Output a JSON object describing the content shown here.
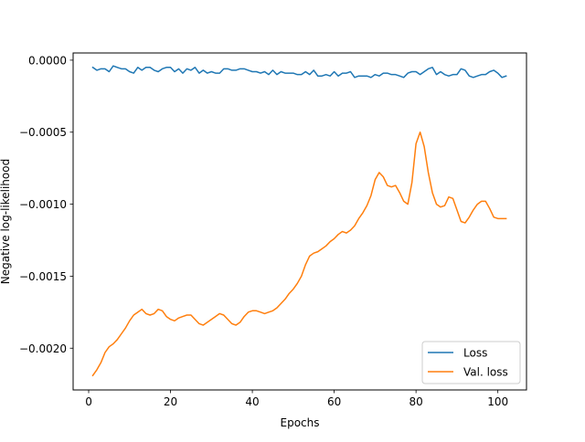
{
  "chart_data": {
    "type": "line",
    "title": "",
    "xlabel": "Epochs",
    "ylabel": "Negative log-likelihood",
    "xlim": [
      -3.8,
      107.0
    ],
    "ylim": [
      -0.00229,
      5e-05
    ],
    "xticks": [
      0,
      20,
      40,
      60,
      80,
      100
    ],
    "yticks": [
      0.0,
      -0.0005,
      -0.001,
      -0.0015,
      -0.002
    ],
    "ytick_labels": [
      "0.0000",
      "−0.0005",
      "−0.0010",
      "−0.0015",
      "−0.0020"
    ],
    "grid": false,
    "legend_position": "lower-right",
    "series": [
      {
        "name": "Loss",
        "color": "#1f77b4",
        "x": [
          1,
          2,
          3,
          4,
          5,
          6,
          7,
          8,
          9,
          10,
          11,
          12,
          13,
          14,
          15,
          16,
          17,
          18,
          19,
          20,
          21,
          22,
          23,
          24,
          25,
          26,
          27,
          28,
          29,
          30,
          31,
          32,
          33,
          34,
          35,
          36,
          37,
          38,
          39,
          40,
          41,
          42,
          43,
          44,
          45,
          46,
          47,
          48,
          49,
          50,
          51,
          52,
          53,
          54,
          55,
          56,
          57,
          58,
          59,
          60,
          61,
          62,
          63,
          64,
          65,
          66,
          67,
          68,
          69,
          70,
          71,
          72,
          73,
          74,
          75,
          76,
          77,
          78,
          79,
          80,
          81,
          82,
          83,
          84,
          85,
          86,
          87,
          88,
          89,
          90,
          91,
          92,
          93,
          94,
          95,
          96,
          97,
          98,
          99,
          100,
          101,
          102
        ],
        "y": [
          -5e-05,
          -7e-05,
          -6e-05,
          -6e-05,
          -8e-05,
          -4e-05,
          -5e-05,
          -6e-05,
          -6e-05,
          -8e-05,
          -9e-05,
          -5e-05,
          -7e-05,
          -5e-05,
          -5e-05,
          -7e-05,
          -8e-05,
          -6e-05,
          -5e-05,
          -5e-05,
          -8e-05,
          -6e-05,
          -9e-05,
          -6e-05,
          -7e-05,
          -5e-05,
          -9e-05,
          -7e-05,
          -9e-05,
          -8e-05,
          -9e-05,
          -9e-05,
          -6e-05,
          -6e-05,
          -7e-05,
          -7e-05,
          -6e-05,
          -6e-05,
          -7e-05,
          -8e-05,
          -8e-05,
          -9e-05,
          -8e-05,
          -0.0001,
          -7e-05,
          -0.0001,
          -8e-05,
          -9e-05,
          -9e-05,
          -9e-05,
          -0.0001,
          -0.0001,
          -8e-05,
          -0.0001,
          -7e-05,
          -0.00011,
          -0.00011,
          -0.0001,
          -0.00011,
          -8e-05,
          -0.00011,
          -9e-05,
          -9e-05,
          -8e-05,
          -0.00012,
          -0.00011,
          -0.00011,
          -0.00011,
          -0.00012,
          -0.0001,
          -0.00011,
          -9e-05,
          -9e-05,
          -0.0001,
          -0.0001,
          -0.00011,
          -0.00012,
          -9e-05,
          -8e-05,
          -8e-05,
          -0.0001,
          -8e-05,
          -6e-05,
          -5e-05,
          -0.0001,
          -8e-05,
          -0.0001,
          -0.00011,
          -0.0001,
          -0.0001,
          -6e-05,
          -7e-05,
          -0.00011,
          -0.00012,
          -0.00011,
          -0.0001,
          -0.0001,
          -8e-05,
          -7e-05,
          -9e-05,
          -0.00012,
          -0.00011
        ]
      },
      {
        "name": "Val. loss",
        "color": "#ff7f0e",
        "x": [
          1,
          2,
          3,
          4,
          5,
          6,
          7,
          8,
          9,
          10,
          11,
          12,
          13,
          14,
          15,
          16,
          17,
          18,
          19,
          20,
          21,
          22,
          23,
          24,
          25,
          26,
          27,
          28,
          29,
          30,
          31,
          32,
          33,
          34,
          35,
          36,
          37,
          38,
          39,
          40,
          41,
          42,
          43,
          44,
          45,
          46,
          47,
          48,
          49,
          50,
          51,
          52,
          53,
          54,
          55,
          56,
          57,
          58,
          59,
          60,
          61,
          62,
          63,
          64,
          65,
          66,
          67,
          68,
          69,
          70,
          71,
          72,
          73,
          74,
          75,
          76,
          77,
          78,
          79,
          80,
          81,
          82,
          83,
          84,
          85,
          86,
          87,
          88,
          89,
          90,
          91,
          92,
          93,
          94,
          95,
          96,
          97,
          98,
          99,
          100,
          101,
          102
        ],
        "y": [
          -0.00219,
          -0.00215,
          -0.0021,
          -0.00203,
          -0.00199,
          -0.00197,
          -0.00194,
          -0.0019,
          -0.00186,
          -0.00181,
          -0.00177,
          -0.00175,
          -0.00173,
          -0.00176,
          -0.00177,
          -0.00176,
          -0.00173,
          -0.00174,
          -0.00178,
          -0.0018,
          -0.00181,
          -0.00179,
          -0.00178,
          -0.00177,
          -0.00177,
          -0.0018,
          -0.00183,
          -0.00184,
          -0.00182,
          -0.0018,
          -0.00178,
          -0.00176,
          -0.00177,
          -0.0018,
          -0.00183,
          -0.00184,
          -0.00182,
          -0.00178,
          -0.00175,
          -0.00174,
          -0.00174,
          -0.00175,
          -0.00176,
          -0.00175,
          -0.00174,
          -0.00172,
          -0.00169,
          -0.00166,
          -0.00162,
          -0.00159,
          -0.00155,
          -0.0015,
          -0.00142,
          -0.00136,
          -0.00134,
          -0.00133,
          -0.00131,
          -0.00129,
          -0.00126,
          -0.00124,
          -0.00121,
          -0.00119,
          -0.0012,
          -0.00118,
          -0.00115,
          -0.0011,
          -0.00106,
          -0.00101,
          -0.00094,
          -0.00083,
          -0.00078,
          -0.00081,
          -0.00087,
          -0.00088,
          -0.00087,
          -0.00092,
          -0.00098,
          -0.001,
          -0.00085,
          -0.00058,
          -0.0005,
          -0.0006,
          -0.00078,
          -0.00092,
          -0.001,
          -0.00102,
          -0.00101,
          -0.00095,
          -0.00096,
          -0.00104,
          -0.00112,
          -0.00113,
          -0.00109,
          -0.00104,
          -0.001,
          -0.00098,
          -0.00098,
          -0.00103,
          -0.00109,
          -0.0011,
          -0.0011,
          -0.0011
        ]
      }
    ]
  }
}
